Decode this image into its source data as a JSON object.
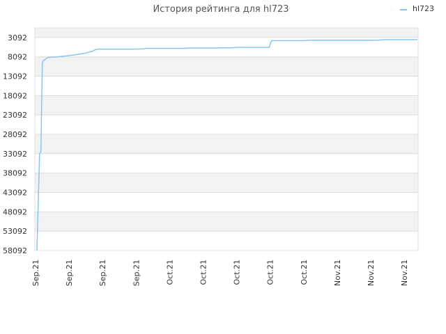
{
  "chart_data": {
    "type": "line",
    "title": "История рейтинга для hl723",
    "legend": {
      "position": "top-right",
      "entries": [
        "hl723"
      ]
    },
    "y_axis": {
      "reversed": true,
      "range": [
        593,
        58092
      ],
      "ticks": [
        3092,
        8092,
        13092,
        18092,
        23092,
        28092,
        33092,
        38092,
        43092,
        48092,
        53092,
        58092
      ]
    },
    "x_axis": {
      "tick_labels": [
        "Sep.21",
        "Sep.21",
        "Sep.21",
        "Sep.21",
        "Oct.21",
        "Oct.21",
        "Oct.21",
        "Oct.21",
        "Oct.21",
        "Nov.21",
        "Nov.21",
        "Nov.21"
      ]
    },
    "grid": true,
    "colors": {
      "line": "#89c6ef",
      "band": "#f2f2f2",
      "grid": "#dddddd"
    },
    "series": [
      {
        "name": "hl723",
        "x": [
          0.0,
          0.4,
          0.6,
          0.8,
          0.9,
          1.0,
          1.2,
          1.4,
          1.6,
          2.0,
          3.0,
          4.0,
          5.0,
          6.0,
          7.0,
          8.0,
          8.5,
          8.8,
          9.2,
          10.0,
          11.0,
          12.0,
          13.0,
          14.0,
          15.0,
          16.0,
          16.3,
          16.6,
          17.0,
          18.0,
          19.0,
          20.0,
          21.0,
          22.0,
          23.0,
          24.0,
          25.0,
          26.0,
          27.0,
          27.5,
          28.0,
          29.0,
          30.0,
          31.0,
          32.0,
          33.0,
          34.0,
          34.8,
          35.0,
          35.2,
          36.0,
          37.0,
          38.0,
          39.0,
          40.0,
          41.0,
          42.0,
          43.0,
          44.0,
          45.0,
          46.0,
          47.0,
          48.0,
          49.0,
          50.0,
          51.0,
          52.0,
          53.0,
          54.0,
          55.0,
          56.0,
          57.0
        ],
        "y": [
          58092,
          33092,
          32600,
          9800,
          9300,
          9000,
          8800,
          8500,
          8300,
          8200,
          8100,
          7900,
          7700,
          7500,
          7200,
          6800,
          6500,
          6200,
          6100,
          6100,
          6100,
          6100,
          6100,
          6100,
          6100,
          6000,
          5900,
          5900,
          5900,
          5900,
          5900,
          5900,
          5900,
          5900,
          5800,
          5800,
          5800,
          5800,
          5800,
          5750,
          5750,
          5750,
          5650,
          5650,
          5650,
          5650,
          5650,
          5650,
          4400,
          3900,
          3900,
          3900,
          3900,
          3900,
          3900,
          3800,
          3800,
          3800,
          3800,
          3800,
          3800,
          3800,
          3800,
          3800,
          3800,
          3800,
          3650,
          3650,
          3650,
          3650,
          3650,
          3650
        ]
      }
    ]
  }
}
